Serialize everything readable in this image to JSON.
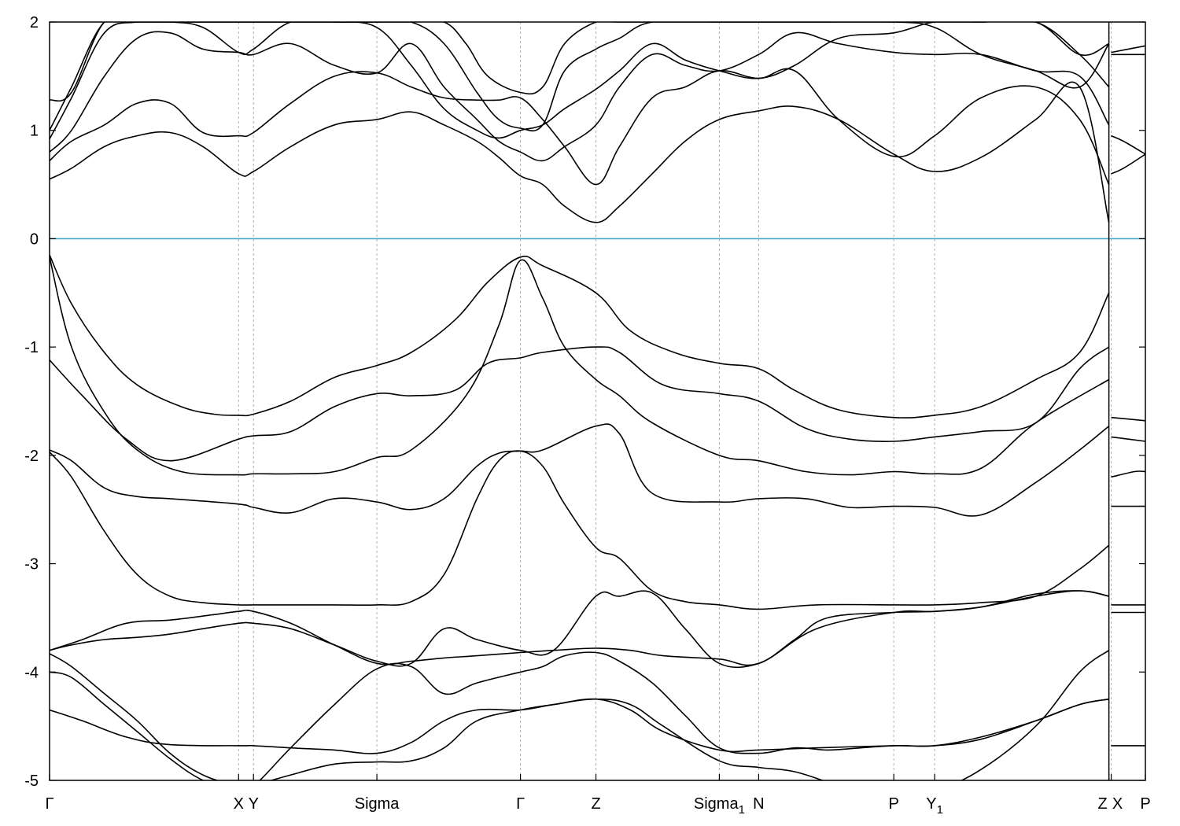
{
  "chart_data": {
    "type": "line",
    "title": "",
    "xlabel": "",
    "ylabel": "",
    "ylim": [
      -5,
      2
    ],
    "y_ticks": [
      2,
      1,
      0,
      -1,
      -2,
      -3,
      -4,
      -5
    ],
    "y_tick_labels": [
      "2",
      "1",
      "0",
      "-1",
      "-2",
      "-3",
      "-4",
      "-5"
    ],
    "fermi_level": 0,
    "fermi_color": "#3fa9c8",
    "grid": "vertical dashed lines at high-symmetry points",
    "xlim": [
      0,
      1
    ],
    "high_symmetry_points": [
      {
        "label": "Γ",
        "sub": "",
        "x": 0.0
      },
      {
        "label": "X",
        "sub": "",
        "x": 0.1725
      },
      {
        "label": "Y",
        "sub": "",
        "x": 0.1861
      },
      {
        "label": "Sigma",
        "sub": "",
        "x": 0.2987
      },
      {
        "label": "Γ",
        "sub": "",
        "x": 0.4297
      },
      {
        "label": "Z",
        "sub": "",
        "x": 0.4986
      },
      {
        "label": "Sigma",
        "sub": "1",
        "x": 0.6112
      },
      {
        "label": "N",
        "sub": "",
        "x": 0.6471
      },
      {
        "label": "P",
        "sub": "",
        "x": 0.7704
      },
      {
        "label": "Y",
        "sub": "1",
        "x": 0.8077
      },
      {
        "label": "Z",
        "sub": "",
        "x": 0.9667
      },
      {
        "label": "X",
        "sub": "",
        "x": 0.9688
      },
      {
        "label": "P",
        "sub": "",
        "x": 1.0
      }
    ],
    "segment_break": {
      "from": 0.9667,
      "to": 0.9688
    },
    "series": [
      {
        "x": [
          0,
          0.02,
          0.05,
          0.08,
          0.12,
          0.15,
          0.1725,
          0.1861,
          0.22,
          0.26,
          0.2987,
          0.33,
          0.37,
          0.4,
          0.4297,
          0.45,
          0.4986,
          0.53,
          0.57,
          0.6112,
          0.6471,
          0.68,
          0.72,
          0.7704,
          0.8077,
          0.85,
          0.9,
          0.94,
          0.9667
        ],
        "y": [
          -0.15,
          -0.6,
          -1.05,
          -1.35,
          -1.55,
          -1.62,
          -1.63,
          -1.62,
          -1.5,
          -1.28,
          -1.17,
          -1.05,
          -0.75,
          -0.4,
          -0.17,
          -0.25,
          -0.5,
          -0.85,
          -1.05,
          -1.15,
          -1.2,
          -1.4,
          -1.58,
          -1.65,
          -1.63,
          -1.55,
          -1.3,
          -1.05,
          -0.5
        ]
      },
      {
        "x": [
          0,
          0.02,
          0.05,
          0.08,
          0.12,
          0.1725,
          0.1861,
          0.22,
          0.26,
          0.2987,
          0.33,
          0.38,
          0.41,
          0.4297,
          0.45,
          0.47,
          0.4986,
          0.52,
          0.55,
          0.6112,
          0.6471,
          0.69,
          0.73,
          0.7704,
          0.8077,
          0.85,
          0.9,
          0.9667
        ],
        "y": [
          -0.17,
          -1.0,
          -1.6,
          -1.95,
          -2.15,
          -2.18,
          -2.17,
          -2.17,
          -2.15,
          -2.02,
          -1.95,
          -1.45,
          -0.8,
          -0.2,
          -0.55,
          -1.0,
          -1.3,
          -1.45,
          -1.7,
          -2.0,
          -2.05,
          -2.15,
          -2.18,
          -2.15,
          -2.17,
          -2.12,
          -1.7,
          -1.3
        ]
      },
      {
        "x": [
          0,
          0.03,
          0.07,
          0.11,
          0.1725,
          0.1861,
          0.22,
          0.26,
          0.2987,
          0.33,
          0.37,
          0.4,
          0.4297,
          0.45,
          0.4986,
          0.52,
          0.56,
          0.6112,
          0.6471,
          0.69,
          0.73,
          0.7704,
          0.8077,
          0.85,
          0.9,
          0.94,
          0.9667
        ],
        "y": [
          -1.12,
          -1.45,
          -1.85,
          -2.05,
          -1.85,
          -1.82,
          -1.78,
          -1.55,
          -1.43,
          -1.45,
          -1.4,
          -1.15,
          -1.1,
          -1.05,
          -1.0,
          -1.05,
          -1.35,
          -1.43,
          -1.5,
          -1.75,
          -1.85,
          -1.87,
          -1.83,
          -1.78,
          -1.7,
          -1.2,
          -1.0
        ]
      },
      {
        "x": [
          0,
          0.02,
          0.05,
          0.08,
          0.11,
          0.1725,
          0.1861,
          0.22,
          0.26,
          0.2987,
          0.33,
          0.36,
          0.39,
          0.41,
          0.4297,
          0.45,
          0.4986,
          0.52,
          0.55,
          0.6112,
          0.6471,
          0.69,
          0.73,
          0.7704,
          0.8077,
          0.85,
          0.9,
          0.94,
          0.9667
        ],
        "y": [
          -1.95,
          -2.05,
          -2.3,
          -2.38,
          -2.4,
          -2.45,
          -2.48,
          -2.53,
          -2.4,
          -2.43,
          -2.5,
          -2.4,
          -2.1,
          -1.98,
          -1.96,
          -1.95,
          -1.73,
          -1.8,
          -2.35,
          -2.43,
          -2.4,
          -2.4,
          -2.48,
          -2.47,
          -2.48,
          -2.55,
          -2.25,
          -1.95,
          -1.73
        ]
      },
      {
        "x": [
          0,
          0.02,
          0.05,
          0.08,
          0.11,
          0.14,
          0.1725,
          0.1861,
          0.22,
          0.26,
          0.2987,
          0.33,
          0.36,
          0.39,
          0.41,
          0.4297,
          0.45,
          0.47,
          0.4986,
          0.52,
          0.55,
          0.58,
          0.6112,
          0.6471,
          0.7,
          0.7704,
          0.8077,
          0.85,
          0.9,
          0.94,
          0.9667
        ],
        "y": [
          -1.97,
          -2.2,
          -2.7,
          -3.1,
          -3.3,
          -3.36,
          -3.38,
          -3.38,
          -3.38,
          -3.38,
          -3.38,
          -3.35,
          -3.1,
          -2.4,
          -2.05,
          -1.96,
          -2.1,
          -2.45,
          -2.85,
          -2.95,
          -3.25,
          -3.35,
          -3.38,
          -3.42,
          -3.38,
          -3.38,
          -3.38,
          -3.36,
          -3.3,
          -3.05,
          -2.83
        ]
      },
      {
        "x": [
          0,
          0.03,
          0.07,
          0.11,
          0.15,
          0.1725,
          0.1861,
          0.22,
          0.26,
          0.2987,
          0.33,
          0.36,
          0.39,
          0.4297,
          0.46,
          0.4986,
          0.53,
          0.56,
          0.6112,
          0.6471,
          0.7,
          0.7704,
          0.8077,
          0.85,
          0.9,
          0.94,
          0.9667
        ],
        "y": [
          -3.8,
          -3.7,
          -3.55,
          -3.52,
          -3.47,
          -3.44,
          -3.44,
          -3.55,
          -3.75,
          -3.92,
          -3.9,
          -3.87,
          -3.85,
          -3.82,
          -3.8,
          -3.78,
          -3.8,
          -3.85,
          -3.88,
          -3.92,
          -3.6,
          -3.45,
          -3.44,
          -3.4,
          -3.28,
          -3.25,
          -3.3
        ]
      },
      {
        "x": [
          0,
          0.02,
          0.05,
          0.08,
          0.11,
          0.14,
          0.1725,
          0.1861,
          0.22,
          0.26,
          0.2987,
          0.33,
          0.36,
          0.39,
          0.4297,
          0.46,
          0.4986,
          0.52,
          0.55,
          0.58,
          0.6112,
          0.6471,
          0.68,
          0.71,
          0.7704,
          0.8077,
          0.85,
          0.9,
          0.94,
          0.9667
        ],
        "y": [
          -3.8,
          -3.75,
          -3.7,
          -3.68,
          -3.65,
          -3.6,
          -3.55,
          -3.55,
          -3.6,
          -3.75,
          -3.9,
          -3.92,
          -3.6,
          -3.7,
          -3.8,
          -3.8,
          -3.3,
          -3.3,
          -3.27,
          -3.6,
          -3.92,
          -3.92,
          -3.7,
          -3.5,
          -3.45,
          -3.44,
          -3.4,
          -3.3,
          -3.25,
          -3.3
        ]
      },
      {
        "x": [
          0,
          0.02,
          0.05,
          0.08,
          0.11,
          0.14,
          0.1725,
          0.1861,
          0.22,
          0.26,
          0.2987,
          0.33,
          0.36,
          0.39,
          0.4297,
          0.45,
          0.47,
          0.4986,
          0.52,
          0.55,
          0.58,
          0.6112,
          0.6471,
          0.68,
          0.71,
          0.74,
          0.7704,
          0.8077,
          0.85,
          0.9,
          0.94,
          0.9667
        ],
        "y": [
          -3.83,
          -3.95,
          -4.2,
          -4.45,
          -4.75,
          -4.95,
          -5.05,
          -5.05,
          -4.7,
          -4.3,
          -3.97,
          -3.95,
          -4.2,
          -4.1,
          -4.0,
          -3.95,
          -3.85,
          -3.82,
          -3.9,
          -4.1,
          -4.4,
          -4.7,
          -4.75,
          -4.7,
          -4.72,
          -4.7,
          -4.68,
          -4.68,
          -4.62,
          -4.45,
          -4.3,
          -4.25
        ]
      },
      {
        "x": [
          0,
          0.02,
          0.05,
          0.08,
          0.11,
          0.14,
          0.1725,
          0.1861,
          0.22,
          0.26,
          0.2987,
          0.33,
          0.36,
          0.39,
          0.4297,
          0.46,
          0.4986,
          0.53,
          0.56,
          0.6112,
          0.6471,
          0.68,
          0.72,
          0.7704,
          0.8077,
          0.85,
          0.9,
          0.94,
          0.9667
        ],
        "y": [
          -4.0,
          -4.05,
          -4.3,
          -4.55,
          -4.8,
          -5.0,
          -5.1,
          -5.05,
          -4.95,
          -4.85,
          -4.83,
          -4.82,
          -4.7,
          -4.45,
          -4.35,
          -4.3,
          -4.25,
          -4.3,
          -4.5,
          -4.82,
          -4.88,
          -4.92,
          -5.05,
          -5.2,
          -5.1,
          -4.9,
          -4.5,
          -4.0,
          -3.8
        ]
      },
      {
        "x": [
          0,
          0.03,
          0.07,
          0.11,
          0.1725,
          0.1861,
          0.22,
          0.26,
          0.2987,
          0.33,
          0.36,
          0.39,
          0.4297,
          0.46,
          0.4986,
          0.53,
          0.56,
          0.6112,
          0.6471,
          0.7,
          0.7704,
          0.8077,
          0.85,
          0.9,
          0.94,
          0.9667
        ],
        "y": [
          -4.35,
          -4.45,
          -4.6,
          -4.67,
          -4.68,
          -4.68,
          -4.7,
          -4.72,
          -4.75,
          -4.65,
          -4.45,
          -4.35,
          -4.35,
          -4.3,
          -4.25,
          -4.35,
          -4.55,
          -4.72,
          -4.72,
          -4.7,
          -4.68,
          -4.68,
          -4.6,
          -4.45,
          -4.3,
          -4.25
        ]
      },
      {
        "x": [
          0,
          0.02,
          0.05,
          0.08,
          0.11,
          0.14,
          0.1725,
          0.1861,
          0.22,
          0.26,
          0.2987,
          0.33,
          0.36,
          0.39,
          0.41,
          0.4297,
          0.45,
          0.47,
          0.4986,
          0.52,
          0.55,
          0.58,
          0.6112,
          0.6471,
          0.68,
          0.72,
          0.7704,
          0.8077,
          0.85,
          0.9,
          0.94,
          0.9667
        ],
        "y": [
          0.55,
          0.65,
          0.85,
          0.95,
          0.98,
          0.85,
          0.6,
          0.62,
          0.85,
          1.05,
          1.1,
          1.17,
          1.05,
          0.9,
          0.75,
          0.58,
          0.5,
          0.3,
          0.15,
          0.3,
          0.6,
          0.9,
          1.1,
          1.18,
          1.22,
          1.1,
          0.78,
          0.62,
          0.75,
          1.1,
          1.4,
          0.15
        ]
      },
      {
        "x": [
          0,
          0.02,
          0.05,
          0.08,
          0.11,
          0.14,
          0.1725,
          0.1861,
          0.22,
          0.26,
          0.2987,
          0.33,
          0.36,
          0.39,
          0.41,
          0.4297,
          0.45,
          0.47,
          0.4986,
          0.52,
          0.55,
          0.58,
          0.6112,
          0.6471,
          0.68,
          0.72,
          0.7704,
          0.8077,
          0.85,
          0.9,
          0.94,
          0.9667
        ],
        "y": [
          0.72,
          0.9,
          1.05,
          1.25,
          1.25,
          0.98,
          0.95,
          0.98,
          1.25,
          1.5,
          1.53,
          1.4,
          1.3,
          1.28,
          1.28,
          1.3,
          1.1,
          0.85,
          0.5,
          0.85,
          1.3,
          1.4,
          1.55,
          1.48,
          1.55,
          1.1,
          0.76,
          0.95,
          1.3,
          1.4,
          1.1,
          0.5
        ]
      },
      {
        "x": [
          0,
          0.02,
          0.05,
          0.08,
          0.11,
          0.14,
          0.1725,
          0.1861,
          0.22,
          0.26,
          0.2987,
          0.33,
          0.36,
          0.39,
          0.41,
          0.4297,
          0.45,
          0.47,
          0.4986,
          0.52,
          0.55,
          0.58,
          0.6112,
          0.6471,
          0.68,
          0.72,
          0.7704,
          0.8077,
          0.85,
          0.9,
          0.94,
          0.9667
        ],
        "y": [
          0.8,
          1.0,
          1.5,
          1.85,
          1.9,
          1.75,
          1.72,
          1.7,
          1.8,
          1.6,
          1.53,
          1.8,
          1.4,
          1.1,
          0.9,
          0.8,
          0.72,
          0.85,
          1.05,
          1.4,
          1.7,
          1.6,
          1.55,
          1.7,
          1.9,
          1.8,
          1.72,
          1.7,
          1.7,
          1.55,
          1.5,
          1.05
        ]
      },
      {
        "x": [
          0,
          0.02,
          0.05,
          0.08,
          0.11,
          0.14,
          0.1725,
          0.1861,
          0.22,
          0.26,
          0.2987,
          0.33,
          0.36,
          0.39,
          0.41,
          0.4297,
          0.45,
          0.47,
          0.4986,
          0.52,
          0.55,
          0.58,
          0.6112,
          0.6471,
          0.68,
          0.72,
          0.7704,
          0.8077,
          0.85,
          0.9,
          0.94,
          0.9667
        ],
        "y": [
          0.92,
          1.3,
          1.9,
          2.0,
          2.0,
          1.95,
          1.72,
          1.75,
          2.0,
          2.0,
          1.95,
          1.6,
          1.2,
          1.0,
          0.93,
          1.0,
          1.05,
          1.2,
          1.38,
          1.55,
          1.8,
          1.65,
          1.55,
          1.48,
          1.6,
          1.85,
          1.9,
          2.0,
          2.0,
          2.0,
          1.7,
          1.4
        ]
      },
      {
        "x": [
          0,
          0.02,
          0.05,
          0.08,
          0.11,
          0.1725,
          0.1861,
          0.22,
          0.26,
          0.2987,
          0.33,
          0.36,
          0.39,
          0.41,
          0.4297,
          0.45,
          0.47,
          0.4986,
          0.52,
          0.55,
          0.6112,
          0.6471,
          0.7,
          0.7704,
          0.8077,
          0.85,
          0.9,
          0.94,
          0.9667
        ],
        "y": [
          1.0,
          1.4,
          2.0,
          2.0,
          2.0,
          2.0,
          2.0,
          2.0,
          2.0,
          2.0,
          2.0,
          1.8,
          1.35,
          1.1,
          1.02,
          1.05,
          1.55,
          1.75,
          1.85,
          2.0,
          2.0,
          2.0,
          2.0,
          2.0,
          1.95,
          1.7,
          1.55,
          1.4,
          1.8
        ]
      },
      {
        "x": [
          0,
          0.02,
          0.05,
          0.08,
          0.1725,
          0.2,
          0.2987,
          0.33,
          0.36,
          0.38,
          0.4,
          0.4297,
          0.45,
          0.47,
          0.4986,
          0.52,
          0.6112,
          0.7,
          0.7704,
          0.8077,
          0.85,
          0.9,
          0.94,
          0.9667
        ],
        "y": [
          1.28,
          1.35,
          2.0,
          2.0,
          2.0,
          2.0,
          2.0,
          2.0,
          2.0,
          1.8,
          1.5,
          1.35,
          1.4,
          1.8,
          2.0,
          2.0,
          2.0,
          2.0,
          2.0,
          2.0,
          2.0,
          2.0,
          1.7,
          1.8
        ]
      },
      {
        "x": [
          0.9688,
          0.98,
          1.0
        ],
        "y": [
          0.6,
          0.65,
          0.78
        ]
      },
      {
        "x": [
          0.9688,
          0.98,
          1.0
        ],
        "y": [
          0.95,
          0.9,
          0.78
        ]
      },
      {
        "x": [
          0.9688,
          1.0
        ],
        "y": [
          1.7,
          1.7
        ]
      },
      {
        "x": [
          0.9688,
          1.0
        ],
        "y": [
          1.72,
          1.78
        ]
      },
      {
        "x": [
          0.9688,
          1.0
        ],
        "y": [
          -1.65,
          -1.68
        ]
      },
      {
        "x": [
          0.9688,
          1.0
        ],
        "y": [
          -1.83,
          -1.87
        ]
      },
      {
        "x": [
          0.9688,
          0.99,
          1.0
        ],
        "y": [
          -2.2,
          -2.15,
          -2.15
        ]
      },
      {
        "x": [
          0.9688,
          1.0
        ],
        "y": [
          -2.47,
          -2.47
        ]
      },
      {
        "x": [
          0.9688,
          1.0
        ],
        "y": [
          -3.38,
          -3.38
        ]
      },
      {
        "x": [
          0.9688,
          1.0
        ],
        "y": [
          -3.45,
          -3.45
        ]
      },
      {
        "x": [
          0.9688,
          1.0
        ],
        "y": [
          -4.68,
          -4.68
        ]
      }
    ]
  }
}
